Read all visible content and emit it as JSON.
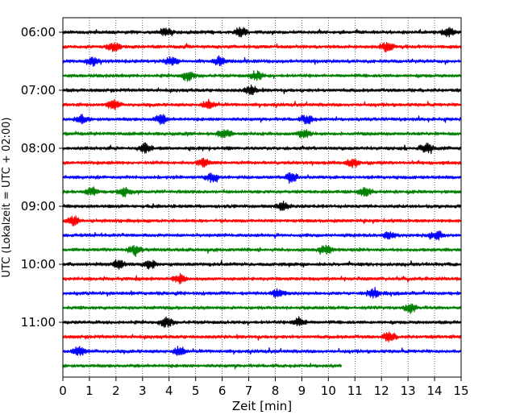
{
  "chart_data": {
    "type": "line",
    "title": "",
    "xlabel": "Zeit  [min]",
    "ylabel": "UTC (Lokalzeit = UTC + 02:00)",
    "xlim": [
      0,
      15
    ],
    "x_ticks": [
      "0",
      "1",
      "2",
      "3",
      "4",
      "5",
      "6",
      "7",
      "8",
      "9",
      "10",
      "11",
      "12",
      "13",
      "14",
      "15"
    ],
    "y_tick_labels": [
      "06:00",
      "07:00",
      "08:00",
      "09:00",
      "10:00",
      "11:00"
    ],
    "grid": "vertical dotted lines at each minute",
    "legend": "none",
    "trace_colors": [
      "#000000",
      "#ff0000",
      "#0000ff",
      "#008000"
    ],
    "traces": [
      {
        "start": "06:00",
        "color": "#000000"
      },
      {
        "start": "06:15",
        "color": "#ff0000"
      },
      {
        "start": "06:30",
        "color": "#0000ff"
      },
      {
        "start": "06:45",
        "color": "#008000"
      },
      {
        "start": "07:00",
        "color": "#000000"
      },
      {
        "start": "07:15",
        "color": "#ff0000"
      },
      {
        "start": "07:30",
        "color": "#0000ff"
      },
      {
        "start": "07:45",
        "color": "#008000"
      },
      {
        "start": "08:00",
        "color": "#000000"
      },
      {
        "start": "08:15",
        "color": "#ff0000"
      },
      {
        "start": "08:30",
        "color": "#0000ff"
      },
      {
        "start": "08:45",
        "color": "#008000"
      },
      {
        "start": "09:00",
        "color": "#000000"
      },
      {
        "start": "09:15",
        "color": "#ff0000"
      },
      {
        "start": "09:30",
        "color": "#0000ff"
      },
      {
        "start": "09:45",
        "color": "#008000"
      },
      {
        "start": "10:00",
        "color": "#000000"
      },
      {
        "start": "10:15",
        "color": "#ff0000"
      },
      {
        "start": "10:30",
        "color": "#0000ff"
      },
      {
        "start": "10:45",
        "color": "#008000"
      },
      {
        "start": "11:00",
        "color": "#000000"
      },
      {
        "start": "11:15",
        "color": "#ff0000"
      },
      {
        "start": "11:30",
        "color": "#0000ff"
      },
      {
        "start": "11:45",
        "color": "#008000",
        "end_min": 10.5
      }
    ],
    "burst_minutes": [
      [
        3.9,
        6.7,
        14.5
      ],
      [
        1.9,
        12.2
      ],
      [
        1.1,
        4.1,
        5.9
      ],
      [
        4.7,
        7.3
      ],
      [
        7.1
      ],
      [
        1.9,
        5.5
      ],
      [
        0.7,
        3.7,
        9.2
      ],
      [
        6.1,
        9.1
      ],
      [
        3.1,
        13.7
      ],
      [
        5.3,
        10.9
      ],
      [
        5.6,
        8.6
      ],
      [
        1.1,
        2.3,
        11.4
      ],
      [
        8.3
      ],
      [
        0.4
      ],
      [
        12.3,
        14.1
      ],
      [
        2.7,
        9.9
      ],
      [
        2.1,
        3.3
      ],
      [
        4.4
      ],
      [
        8.1,
        11.7
      ],
      [
        13.1
      ],
      [
        3.9,
        8.9
      ],
      [
        12.3
      ],
      [
        0.6,
        4.4
      ],
      []
    ]
  }
}
